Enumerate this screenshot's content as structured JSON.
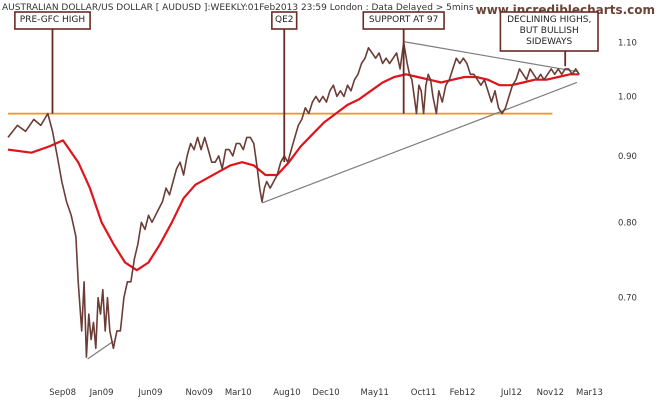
{
  "header": {
    "title": "AUSTRALIAN DOLLAR/US DOLLAR [ AUDUSD ]:WEEKLY:01Feb2013 23:59 London : Data Delayed > 5mins",
    "brand": "www.incrediblecharts.com"
  },
  "colors": {
    "price": "#6b3d36",
    "ma": "#e0141b",
    "support": "#f39420",
    "trend": "#7d7d7d",
    "annotation": "#6b2a25"
  },
  "chart_data": {
    "type": "line",
    "scale": "log",
    "ylim": [
      0.605,
      1.145
    ],
    "xlim": [
      2008.2,
      2013.3
    ],
    "x_ticks": [
      {
        "label": "Sep08",
        "x": 2008.667
      },
      {
        "label": "Jan09",
        "x": 2009.0
      },
      {
        "label": "Jun09",
        "x": 2009.417
      },
      {
        "label": "Nov09",
        "x": 2009.833
      },
      {
        "label": "Mar10",
        "x": 2010.167
      },
      {
        "label": "Aug10",
        "x": 2010.583
      },
      {
        "label": "Dec10",
        "x": 2010.917
      },
      {
        "label": "May11",
        "x": 2011.333
      },
      {
        "label": "Oct11",
        "x": 2011.75
      },
      {
        "label": "Feb12",
        "x": 2012.083
      },
      {
        "label": "Jul12",
        "x": 2012.5
      },
      {
        "label": "Nov12",
        "x": 2012.833
      },
      {
        "label": "Mar13",
        "x": 2013.167
      }
    ],
    "y_ticks": [
      {
        "label": "0.70",
        "v": 0.7
      },
      {
        "label": "0.80",
        "v": 0.8
      },
      {
        "label": "0.90",
        "v": 0.9
      },
      {
        "label": "1.00",
        "v": 1.0
      },
      {
        "label": "1.10",
        "v": 1.1
      }
    ],
    "series": [
      {
        "key": "price",
        "points": [
          [
            2008.2,
            0.93
          ],
          [
            2008.28,
            0.95
          ],
          [
            2008.35,
            0.94
          ],
          [
            2008.42,
            0.96
          ],
          [
            2008.48,
            0.95
          ],
          [
            2008.54,
            0.97
          ],
          [
            2008.58,
            0.94
          ],
          [
            2008.62,
            0.9
          ],
          [
            2008.66,
            0.86
          ],
          [
            2008.7,
            0.83
          ],
          [
            2008.74,
            0.81
          ],
          [
            2008.78,
            0.78
          ],
          [
            2008.8,
            0.72
          ],
          [
            2008.83,
            0.66
          ],
          [
            2008.85,
            0.72
          ],
          [
            2008.87,
            0.63
          ],
          [
            2008.89,
            0.68
          ],
          [
            2008.91,
            0.65
          ],
          [
            2008.93,
            0.67
          ],
          [
            2008.95,
            0.64
          ],
          [
            2008.97,
            0.7
          ],
          [
            2008.99,
            0.68
          ],
          [
            2009.01,
            0.71
          ],
          [
            2009.03,
            0.66
          ],
          [
            2009.05,
            0.7
          ],
          [
            2009.07,
            0.66
          ],
          [
            2009.1,
            0.64
          ],
          [
            2009.13,
            0.66
          ],
          [
            2009.16,
            0.66
          ],
          [
            2009.19,
            0.7
          ],
          [
            2009.22,
            0.72
          ],
          [
            2009.25,
            0.72
          ],
          [
            2009.28,
            0.75
          ],
          [
            2009.31,
            0.77
          ],
          [
            2009.34,
            0.8
          ],
          [
            2009.37,
            0.79
          ],
          [
            2009.4,
            0.81
          ],
          [
            2009.43,
            0.8
          ],
          [
            2009.46,
            0.81
          ],
          [
            2009.49,
            0.82
          ],
          [
            2009.52,
            0.83
          ],
          [
            2009.55,
            0.85
          ],
          [
            2009.58,
            0.84
          ],
          [
            2009.61,
            0.86
          ],
          [
            2009.64,
            0.88
          ],
          [
            2009.67,
            0.89
          ],
          [
            2009.7,
            0.87
          ],
          [
            2009.73,
            0.9
          ],
          [
            2009.76,
            0.92
          ],
          [
            2009.79,
            0.91
          ],
          [
            2009.82,
            0.93
          ],
          [
            2009.85,
            0.91
          ],
          [
            2009.88,
            0.93
          ],
          [
            2009.91,
            0.91
          ],
          [
            2009.94,
            0.89
          ],
          [
            2009.97,
            0.89
          ],
          [
            2010.0,
            0.9
          ],
          [
            2010.03,
            0.88
          ],
          [
            2010.06,
            0.91
          ],
          [
            2010.09,
            0.91
          ],
          [
            2010.12,
            0.9
          ],
          [
            2010.15,
            0.92
          ],
          [
            2010.18,
            0.92
          ],
          [
            2010.21,
            0.91
          ],
          [
            2010.24,
            0.93
          ],
          [
            2010.27,
            0.93
          ],
          [
            2010.3,
            0.92
          ],
          [
            2010.33,
            0.88
          ],
          [
            2010.35,
            0.85
          ],
          [
            2010.37,
            0.83
          ],
          [
            2010.39,
            0.85
          ],
          [
            2010.41,
            0.86
          ],
          [
            2010.44,
            0.85
          ],
          [
            2010.47,
            0.86
          ],
          [
            2010.5,
            0.87
          ],
          [
            2010.53,
            0.89
          ],
          [
            2010.56,
            0.9
          ],
          [
            2010.59,
            0.89
          ],
          [
            2010.62,
            0.91
          ],
          [
            2010.65,
            0.93
          ],
          [
            2010.68,
            0.95
          ],
          [
            2010.71,
            0.96
          ],
          [
            2010.74,
            0.98
          ],
          [
            2010.77,
            0.97
          ],
          [
            2010.8,
            0.99
          ],
          [
            2010.83,
            1.0
          ],
          [
            2010.86,
            0.99
          ],
          [
            2010.89,
            1.0
          ],
          [
            2010.92,
            0.99
          ],
          [
            2010.95,
            1.01
          ],
          [
            2010.98,
            1.02
          ],
          [
            2011.01,
            1.0
          ],
          [
            2011.04,
            1.01
          ],
          [
            2011.07,
            1.0
          ],
          [
            2011.1,
            1.02
          ],
          [
            2011.13,
            1.01
          ],
          [
            2011.16,
            1.03
          ],
          [
            2011.19,
            1.04
          ],
          [
            2011.22,
            1.06
          ],
          [
            2011.25,
            1.07
          ],
          [
            2011.28,
            1.09
          ],
          [
            2011.31,
            1.08
          ],
          [
            2011.34,
            1.07
          ],
          [
            2011.37,
            1.08
          ],
          [
            2011.4,
            1.06
          ],
          [
            2011.43,
            1.07
          ],
          [
            2011.46,
            1.06
          ],
          [
            2011.49,
            1.07
          ],
          [
            2011.52,
            1.08
          ],
          [
            2011.55,
            1.05
          ],
          [
            2011.58,
            1.1
          ],
          [
            2011.61,
            1.06
          ],
          [
            2011.63,
            1.04
          ],
          [
            2011.65,
            1.03
          ],
          [
            2011.67,
            1.0
          ],
          [
            2011.69,
            0.97
          ],
          [
            2011.71,
            1.02
          ],
          [
            2011.73,
            1.01
          ],
          [
            2011.75,
            0.97
          ],
          [
            2011.77,
            1.02
          ],
          [
            2011.79,
            1.04
          ],
          [
            2011.81,
            1.03
          ],
          [
            2011.83,
            1.0
          ],
          [
            2011.86,
            0.97
          ],
          [
            2011.88,
            1.01
          ],
          [
            2011.91,
            0.99
          ],
          [
            2011.94,
            1.02
          ],
          [
            2011.97,
            1.03
          ],
          [
            2012.0,
            1.05
          ],
          [
            2012.03,
            1.07
          ],
          [
            2012.06,
            1.06
          ],
          [
            2012.09,
            1.07
          ],
          [
            2012.12,
            1.06
          ],
          [
            2012.15,
            1.04
          ],
          [
            2012.18,
            1.04
          ],
          [
            2012.21,
            1.03
          ],
          [
            2012.24,
            1.02
          ],
          [
            2012.27,
            1.03
          ],
          [
            2012.3,
            1.01
          ],
          [
            2012.33,
            0.99
          ],
          [
            2012.36,
            1.01
          ],
          [
            2012.39,
            0.98
          ],
          [
            2012.42,
            0.97
          ],
          [
            2012.45,
            0.98
          ],
          [
            2012.48,
            1.0
          ],
          [
            2012.51,
            1.02
          ],
          [
            2012.54,
            1.03
          ],
          [
            2012.57,
            1.05
          ],
          [
            2012.6,
            1.04
          ],
          [
            2012.63,
            1.03
          ],
          [
            2012.66,
            1.05
          ],
          [
            2012.69,
            1.04
          ],
          [
            2012.72,
            1.03
          ],
          [
            2012.75,
            1.04
          ],
          [
            2012.78,
            1.03
          ],
          [
            2012.81,
            1.04
          ],
          [
            2012.84,
            1.05
          ],
          [
            2012.87,
            1.04
          ],
          [
            2012.9,
            1.05
          ],
          [
            2012.93,
            1.04
          ],
          [
            2012.96,
            1.05
          ],
          [
            2012.99,
            1.05
          ],
          [
            2013.02,
            1.04
          ],
          [
            2013.05,
            1.05
          ],
          [
            2013.08,
            1.04
          ]
        ]
      },
      {
        "key": "ma",
        "points": [
          [
            2008.2,
            0.91
          ],
          [
            2008.4,
            0.905
          ],
          [
            2008.55,
            0.915
          ],
          [
            2008.67,
            0.925
          ],
          [
            2008.8,
            0.89
          ],
          [
            2008.9,
            0.85
          ],
          [
            2009.0,
            0.8
          ],
          [
            2009.1,
            0.77
          ],
          [
            2009.2,
            0.745
          ],
          [
            2009.3,
            0.735
          ],
          [
            2009.4,
            0.745
          ],
          [
            2009.5,
            0.77
          ],
          [
            2009.6,
            0.8
          ],
          [
            2009.7,
            0.835
          ],
          [
            2009.8,
            0.855
          ],
          [
            2009.9,
            0.865
          ],
          [
            2010.0,
            0.875
          ],
          [
            2010.1,
            0.885
          ],
          [
            2010.2,
            0.89
          ],
          [
            2010.3,
            0.885
          ],
          [
            2010.4,
            0.87
          ],
          [
            2010.5,
            0.87
          ],
          [
            2010.6,
            0.89
          ],
          [
            2010.7,
            0.915
          ],
          [
            2010.8,
            0.935
          ],
          [
            2010.9,
            0.955
          ],
          [
            2011.0,
            0.97
          ],
          [
            2011.1,
            0.985
          ],
          [
            2011.2,
            0.995
          ],
          [
            2011.3,
            1.01
          ],
          [
            2011.4,
            1.025
          ],
          [
            2011.5,
            1.035
          ],
          [
            2011.6,
            1.04
          ],
          [
            2011.7,
            1.035
          ],
          [
            2011.8,
            1.03
          ],
          [
            2011.9,
            1.025
          ],
          [
            2012.0,
            1.03
          ],
          [
            2012.1,
            1.035
          ],
          [
            2012.2,
            1.035
          ],
          [
            2012.3,
            1.03
          ],
          [
            2012.4,
            1.02
          ],
          [
            2012.5,
            1.02
          ],
          [
            2012.6,
            1.025
          ],
          [
            2012.7,
            1.03
          ],
          [
            2012.8,
            1.03
          ],
          [
            2012.9,
            1.035
          ],
          [
            2013.0,
            1.04
          ],
          [
            2013.08,
            1.04
          ]
        ]
      }
    ],
    "support_line": {
      "value": 0.97,
      "x_start": 2008.2,
      "x_end": 2012.85
    },
    "trend_lines": [
      {
        "points": [
          [
            2008.88,
            0.628
          ],
          [
            2009.1,
            0.648
          ]
        ]
      },
      {
        "points": [
          [
            2010.37,
            0.828
          ],
          [
            2013.06,
            1.025
          ]
        ]
      },
      {
        "points": [
          [
            2011.58,
            1.102
          ],
          [
            2013.06,
            1.045
          ]
        ]
      }
    ],
    "annotations": [
      {
        "key": "pre-gfc",
        "text": [
          "PRE-GFC HIGH"
        ],
        "x": 2008.58,
        "y": 0.97
      },
      {
        "key": "qe2",
        "text": [
          "QE2"
        ],
        "x": 2010.56,
        "y": 0.89
      },
      {
        "key": "support",
        "text": [
          "SUPPORT AT 97"
        ],
        "x": 2011.58,
        "y": 0.97
      },
      {
        "key": "declining",
        "text": [
          "DECLINING HIGHS,",
          "BUT BULLISH",
          "SIDEWAYS"
        ],
        "x": 2012.96,
        "y": 1.055
      }
    ]
  }
}
